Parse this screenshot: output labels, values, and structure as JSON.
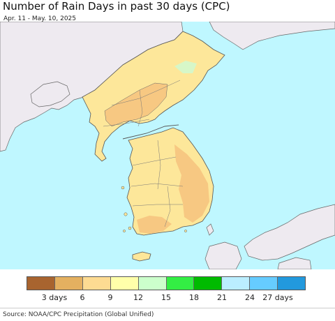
{
  "header": {
    "title": "Number of Rain Days in past 30 days (CPC)",
    "date_range": "Apr. 11 - May. 10, 2025"
  },
  "map": {
    "colors": {
      "ocean": "#bff7ff",
      "foreign_land": "#eeeaf0",
      "korea_light": "#fde79a",
      "korea_orange": "#f7c882",
      "korea_pale_green": "#d7f7c8",
      "borders": "#555555"
    }
  },
  "legend": {
    "colors": [
      "#a8642f",
      "#e4b060",
      "#fddb92",
      "#ffffaa",
      "#ccffcc",
      "#33ee44",
      "#00bb00",
      "#bbeeff",
      "#66ccff",
      "#2299dd"
    ],
    "labels": [
      "3 days",
      "6",
      "9",
      "12",
      "15",
      "18",
      "21",
      "24",
      "27 days"
    ]
  },
  "footer": {
    "source": "Source: NOAA/CPC Precipitation (Global Unified)"
  }
}
